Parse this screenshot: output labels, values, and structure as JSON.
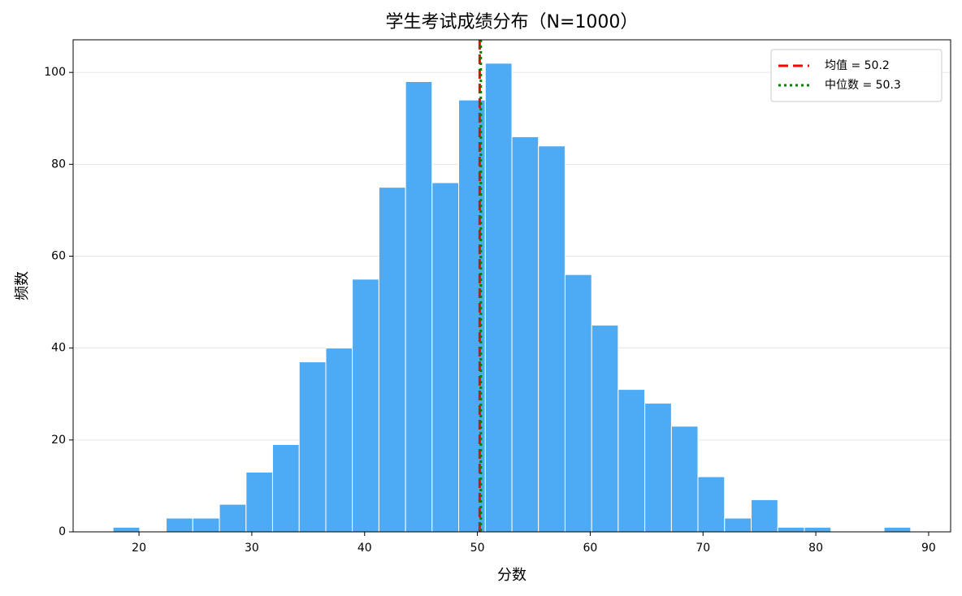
{
  "chart_data": {
    "type": "histogram",
    "title": "学生考试成绩分布（N=1000）",
    "x_label": "分数",
    "y_label": "频数",
    "bins": [
      17.7,
      20.06,
      22.41,
      24.77,
      27.13,
      29.49,
      31.84,
      34.2,
      36.56,
      38.91,
      41.27,
      43.63,
      45.98,
      48.34,
      50.7,
      53.06,
      55.41,
      57.77,
      60.13,
      62.48,
      64.84,
      67.2,
      69.55,
      71.91,
      74.27,
      76.63,
      78.98,
      81.34,
      83.7,
      86.05,
      88.41
    ],
    "values": [
      1,
      0,
      3,
      3,
      6,
      13,
      19,
      37,
      40,
      55,
      75,
      98,
      76,
      94,
      102,
      86,
      84,
      56,
      45,
      31,
      28,
      23,
      12,
      3,
      7,
      1,
      1,
      0,
      0,
      1
    ],
    "color": "#4dabf5",
    "reference_lines": [
      {
        "name": "均值 = 50.2",
        "value": 50.2,
        "color": "#ff0000",
        "style": "dashed"
      },
      {
        "name": "中位数 = 50.3",
        "value": 50.3,
        "color": "#008000",
        "style": "dotted"
      }
    ],
    "xlim": [
      14.16,
      91.95
    ],
    "xticks": [
      20,
      30,
      40,
      50,
      60,
      70,
      80,
      90
    ],
    "ylim": [
      0,
      107.1
    ],
    "yticks": [
      0,
      20,
      40,
      60,
      80,
      100
    ],
    "grid": "y",
    "legend": "upper right"
  }
}
